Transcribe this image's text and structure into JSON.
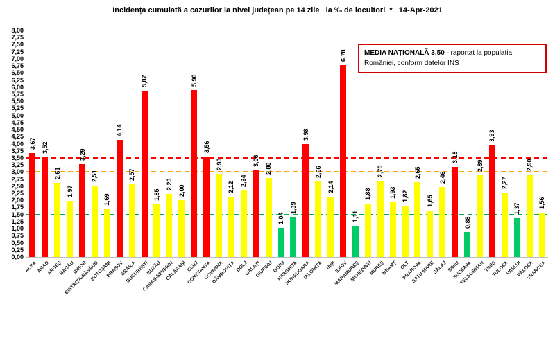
{
  "title": "Incidența cumulată a cazurilor la nivel județean pe 14 zile   la ‰ de locuitori  *   14-Apr-2021",
  "note_box": {
    "bold_text": "MEDIA NAȚIONALĂ 3,50 -",
    "regular_text": " raportat la populația României, conform datelor INS",
    "border_color": "#d00000"
  },
  "chart_data": {
    "type": "bar",
    "title": "Incidența cumulată a cazurilor la nivel județean pe 14 zile la ‰ de locuitori * 14-Apr-2021",
    "xlabel": "",
    "ylabel": "",
    "ylim": [
      0,
      8
    ],
    "ytick_step": 0.25,
    "decimal_separator": ",",
    "grid": false,
    "categories": [
      "ALBA",
      "ARAD",
      "ARGEȘ",
      "BACĂU",
      "BIHOR",
      "BISTRIȚA-NĂSĂUD",
      "BOTOȘANI",
      "BRAȘOV",
      "BRĂILA",
      "BUCUREȘTI",
      "BUZĂU",
      "CARAȘ-SEVERIN",
      "CĂLĂRAȘI",
      "CLUJ",
      "CONSTANȚA",
      "COVASNA",
      "DÂMBOVIȚA",
      "DOLJ",
      "GALAȚI",
      "GIURGIU",
      "GORJ",
      "HARGHITA",
      "HUNEDOARA",
      "IALOMIȚA",
      "IAȘI",
      "ILFOV",
      "MARAMUREȘ",
      "MEHEDINȚI",
      "MUREȘ",
      "NEAMȚ",
      "OLT",
      "PRAHOVA",
      "SATU MARE",
      "SĂLAJ",
      "SIBIU",
      "SUCEAVA",
      "TELEORMAN",
      "TIMIȘ",
      "TULCEA",
      "VASLUI",
      "VÂLCEA",
      "VRANCEA"
    ],
    "values": [
      3.67,
      3.52,
      2.61,
      1.97,
      3.29,
      2.51,
      1.69,
      4.14,
      2.57,
      5.87,
      1.85,
      2.23,
      2.0,
      5.9,
      3.56,
      2.93,
      2.12,
      2.34,
      3.06,
      2.8,
      1.04,
      1.39,
      3.98,
      2.66,
      2.14,
      6.78,
      1.11,
      1.88,
      2.7,
      1.93,
      1.82,
      2.65,
      1.65,
      2.46,
      3.18,
      0.88,
      2.89,
      3.93,
      2.27,
      1.37,
      2.9,
      1.56
    ],
    "bar_colors": [
      "red",
      "red",
      "yellow",
      "yellow",
      "red",
      "yellow",
      "yellow",
      "red",
      "yellow",
      "red",
      "yellow",
      "yellow",
      "yellow",
      "red",
      "red",
      "yellow",
      "yellow",
      "yellow",
      "red",
      "yellow",
      "green",
      "green",
      "red",
      "yellow",
      "yellow",
      "red",
      "green",
      "yellow",
      "yellow",
      "yellow",
      "yellow",
      "yellow",
      "yellow",
      "yellow",
      "red",
      "green",
      "yellow",
      "red",
      "yellow",
      "green",
      "yellow",
      "yellow"
    ],
    "palette": {
      "red": "#ff0000",
      "yellow": "#ffff00",
      "green": "#00cc66"
    },
    "reference_lines": [
      {
        "value": 3.5,
        "color": "#ff0000"
      },
      {
        "value": 3.0,
        "color": "#ffa500"
      },
      {
        "value": 1.5,
        "color": "#00b050"
      }
    ],
    "legend_position": "top-right"
  }
}
